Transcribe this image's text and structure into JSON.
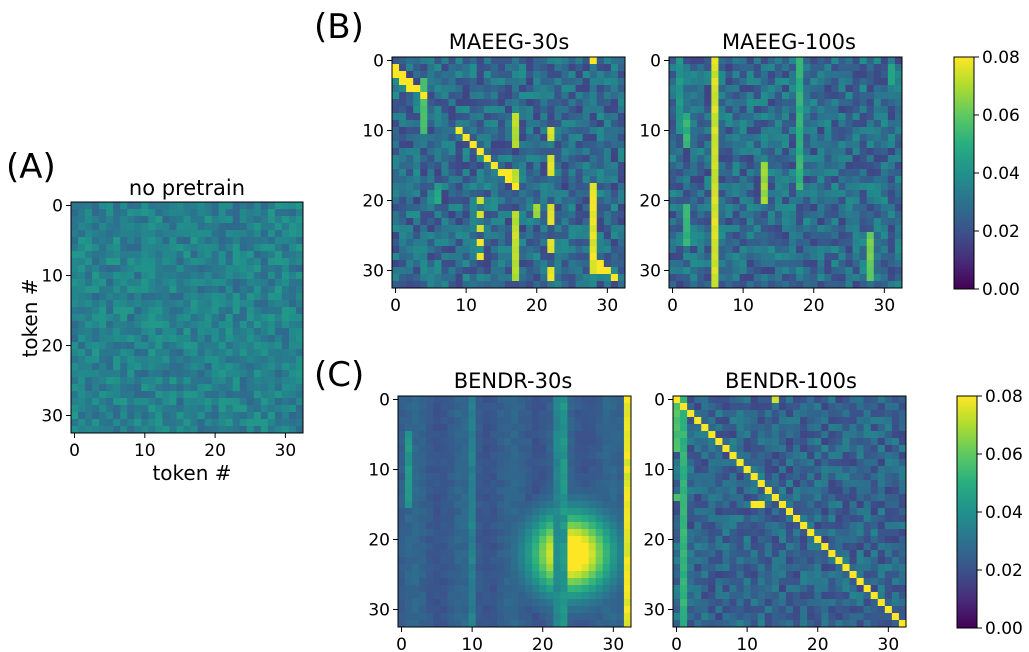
{
  "figure": {
    "panel_letters": [
      "(A)",
      "(B)",
      "(C)"
    ]
  },
  "chart_data": [
    {
      "id": "A",
      "type": "heatmap",
      "title": "no pretrain",
      "xlabel": "token #",
      "ylabel": "token #",
      "grid_size": 33,
      "x_ticks": [
        0,
        10,
        20,
        30
      ],
      "y_ticks": [
        0,
        10,
        20,
        30
      ],
      "pattern": "uniform-noise",
      "value_mean": 0.035,
      "value_noise": 0.008,
      "vmin": 0,
      "vmax": 0.08,
      "seed": 11
    },
    {
      "id": "B1",
      "type": "heatmap",
      "title": "MAEEG-30s",
      "xlabel": "",
      "ylabel": "",
      "grid_size": 33,
      "x_ticks": [
        0,
        10,
        20,
        30
      ],
      "y_ticks": [
        0,
        10,
        20,
        30
      ],
      "pattern": "sparse-columns",
      "value_mean": 0.028,
      "value_noise": 0.012,
      "hot_columns": [
        {
          "col": 4,
          "rows": [
            3,
            4,
            5,
            6,
            7,
            8,
            9,
            10
          ],
          "value": 0.06
        },
        {
          "col": 12,
          "rows": [
            20,
            22,
            24,
            26,
            28
          ],
          "value": 0.08
        },
        {
          "col": 17,
          "rows": [
            8,
            9,
            10,
            11,
            12,
            16,
            17,
            18,
            22,
            23,
            24,
            25,
            26,
            27,
            28,
            29,
            30,
            31
          ],
          "value": 0.075
        },
        {
          "col": 22,
          "rows": [
            10,
            11,
            14,
            15,
            16,
            21,
            22,
            23,
            26,
            27,
            30,
            31
          ],
          "value": 0.08
        },
        {
          "col": 28,
          "rows": [
            0,
            18,
            19,
            20,
            21,
            22,
            23,
            24,
            25,
            26,
            27,
            28,
            29,
            30
          ],
          "value": 0.08
        },
        {
          "col": 6,
          "rows": [
            18,
            19,
            20
          ],
          "value": 0.05
        },
        {
          "col": 20,
          "rows": [
            21,
            22
          ],
          "value": 0.07
        }
      ],
      "hot_cells": [
        [
          1,
          0
        ],
        [
          2,
          0
        ],
        [
          2,
          1
        ],
        [
          3,
          1
        ],
        [
          3,
          2
        ],
        [
          4,
          2
        ],
        [
          4,
          3
        ],
        [
          5,
          4
        ],
        [
          10,
          9
        ],
        [
          11,
          10
        ],
        [
          12,
          11
        ],
        [
          13,
          12
        ],
        [
          14,
          13
        ],
        [
          15,
          14
        ],
        [
          16,
          15
        ],
        [
          16,
          16
        ],
        [
          17,
          16
        ],
        [
          18,
          17
        ],
        [
          29,
          29
        ],
        [
          30,
          29
        ],
        [
          30,
          30
        ],
        [
          31,
          31
        ],
        [
          0,
          28
        ]
      ],
      "vmin": 0,
      "vmax": 0.08,
      "seed": 23
    },
    {
      "id": "B2",
      "type": "heatmap",
      "title": "MAEEG-100s",
      "xlabel": "",
      "ylabel": "",
      "grid_size": 33,
      "x_ticks": [
        0,
        10,
        20,
        30
      ],
      "y_ticks": [
        0,
        10,
        20,
        30
      ],
      "pattern": "columns",
      "value_mean": 0.028,
      "value_noise": 0.012,
      "hot_columns": [
        {
          "col": 6,
          "rows": "all",
          "value": 0.078
        },
        {
          "col": 2,
          "rows": [
            8,
            9,
            10,
            11,
            12,
            21,
            22,
            23,
            24,
            25,
            26
          ],
          "value": 0.055
        },
        {
          "col": 13,
          "rows": [
            15,
            16,
            17,
            18,
            19,
            20
          ],
          "value": 0.072
        },
        {
          "col": 18,
          "rows": [
            0,
            1,
            2,
            3,
            4,
            5,
            6,
            7,
            8,
            9,
            10,
            11,
            12,
            13,
            14,
            15,
            16,
            17,
            18
          ],
          "value": 0.055
        },
        {
          "col": 28,
          "rows": [
            25,
            26,
            27,
            28,
            29,
            30,
            31
          ],
          "value": 0.065
        },
        {
          "col": 31,
          "rows": [
            1,
            2,
            3
          ],
          "value": 0.05
        },
        {
          "col": 1,
          "rows": [
            0,
            1,
            2,
            3,
            4,
            5,
            6,
            7,
            8,
            9,
            10
          ],
          "value": 0.045
        }
      ],
      "hot_cells": [],
      "vmin": 0,
      "vmax": 0.08,
      "seed": 37
    },
    {
      "id": "C1",
      "type": "heatmap",
      "title": "BENDR-30s",
      "xlabel": "",
      "ylabel": "",
      "grid_size": 33,
      "x_ticks": [
        0,
        10,
        20,
        30
      ],
      "y_ticks": [
        0,
        10,
        20,
        30
      ],
      "pattern": "smooth-blob",
      "value_mean": 0.024,
      "value_noise": 0.004,
      "hot_columns": [
        {
          "col": 32,
          "rows": "all",
          "value": 0.08
        },
        {
          "col": 23,
          "rows": "all",
          "value": 0.045
        },
        {
          "col": 22,
          "rows": "all",
          "value": 0.04
        },
        {
          "col": 10,
          "rows": "all",
          "value": 0.038
        },
        {
          "col": 1,
          "rows": [
            5,
            6,
            7,
            8,
            9,
            10,
            11,
            12,
            13,
            14,
            15
          ],
          "value": 0.045
        }
      ],
      "blob": {
        "row": 22,
        "col": 24,
        "peak": 0.072,
        "radius": 4
      },
      "hot_cells": [],
      "vmin": 0,
      "vmax": 0.08,
      "seed": 41
    },
    {
      "id": "C2",
      "type": "heatmap",
      "title": "BENDR-100s",
      "xlabel": "",
      "ylabel": "",
      "grid_size": 33,
      "x_ticks": [
        0,
        10,
        20,
        30
      ],
      "y_ticks": [
        0,
        10,
        20,
        30
      ],
      "pattern": "diagonal",
      "value_mean": 0.026,
      "value_noise": 0.01,
      "hot_columns": [
        {
          "col": 1,
          "rows": "all",
          "value": 0.055
        },
        {
          "col": 0,
          "rows": [
            0,
            1,
            2,
            3,
            4,
            5,
            6,
            7,
            14
          ],
          "value": 0.06
        },
        {
          "col": 14,
          "rows": [
            0
          ],
          "value": 0.08
        }
      ],
      "diagonal_value": 0.08,
      "hot_cells": [
        [
          15,
          11
        ],
        [
          15,
          12
        ]
      ],
      "vmin": 0,
      "vmax": 0.08,
      "seed": 53
    },
    {
      "id": "CB_B",
      "type": "colorbar",
      "ticks": [
        "0.08",
        "0.06",
        "0.04",
        "0.02",
        "0.00"
      ],
      "ylim": [
        0,
        0.08
      ],
      "colormap": "viridis"
    },
    {
      "id": "CB_C",
      "type": "colorbar",
      "ticks": [
        "0.08",
        "0.06",
        "0.04",
        "0.02",
        "0.00"
      ],
      "ylim": [
        0,
        0.08
      ],
      "colormap": "viridis"
    }
  ]
}
